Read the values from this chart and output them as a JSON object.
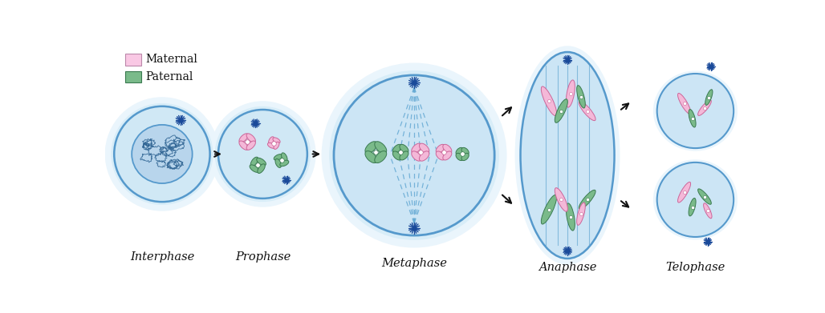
{
  "bg_color": "#ffffff",
  "cell_light": "#ddeef8",
  "cell_mid": "#c8e2f2",
  "cell_border": "#5599cc",
  "nucleus_fill": "#b8d8f0",
  "nucleus_border": "#5599cc",
  "maternal_color": "#f4b8d8",
  "maternal_edge": "#cc6699",
  "paternal_color": "#7aba8a",
  "paternal_edge": "#3a7a50",
  "spindle_color": "#66aad4",
  "star_color": "#1a4a9a",
  "arrow_color": "#111111",
  "label_color": "#111111",
  "legend_maternal": "#f9c8e4",
  "legend_paternal": "#7aba8a",
  "chromatin_color": "#3377aa",
  "stages": [
    "Interphase",
    "Prophase",
    "Metaphase",
    "Anaphase",
    "Telophase"
  ],
  "figsize": [
    10.28,
    3.91
  ],
  "dpi": 100
}
